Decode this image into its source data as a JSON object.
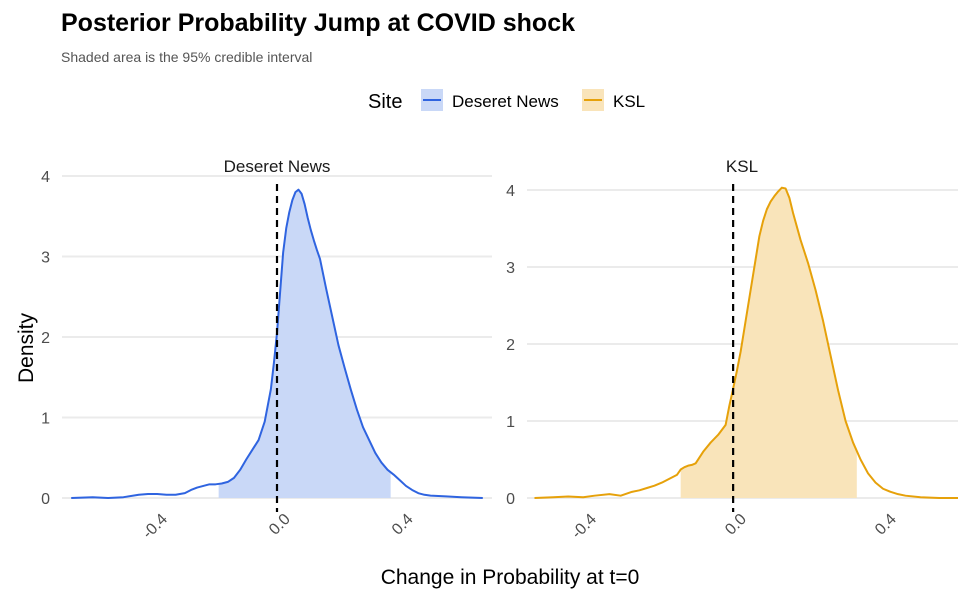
{
  "chart_data": {
    "type": "area",
    "title": "Posterior Probability Jump at COVID shock",
    "subtitle": "Shaded area is the 95% credible interval",
    "xlabel": "Change in Probability at t=0",
    "ylabel": "Density",
    "legend": {
      "title": "Site",
      "placement": "top",
      "entries": [
        {
          "label": "Deseret News",
          "color": "#2f64e0",
          "fill": "#c9d8f7"
        },
        {
          "label": "KSL",
          "color": "#e6a10a",
          "fill": "#f9e4ba"
        }
      ]
    },
    "reference_line": {
      "x": 0,
      "style": "dashed",
      "color": "#000000"
    },
    "grid": "horizontal",
    "panels": [
      {
        "strip": "Deseret News",
        "color": "#2f64e0",
        "fill": "#c9d8f7",
        "xlim": [
          -0.7,
          0.7
        ],
        "ylim": [
          0,
          4.0
        ],
        "x_ticks": [
          -0.4,
          0.0,
          0.4
        ],
        "x_tick_labels": [
          "-0.4",
          "0.0",
          "0.4"
        ],
        "y_ticks": [
          0,
          1,
          2,
          3,
          4
        ],
        "y_tick_labels": [
          "0",
          "1",
          "2",
          "3",
          "4"
        ],
        "ci": [
          -0.19,
          0.37
        ],
        "density": {
          "x": [
            -0.67,
            -0.6,
            -0.55,
            -0.5,
            -0.45,
            -0.42,
            -0.39,
            -0.36,
            -0.33,
            -0.3,
            -0.28,
            -0.26,
            -0.24,
            -0.22,
            -0.2,
            -0.18,
            -0.16,
            -0.14,
            -0.12,
            -0.1,
            -0.08,
            -0.06,
            -0.04,
            -0.02,
            -0.01,
            0.0,
            0.01,
            0.02,
            0.03,
            0.04,
            0.05,
            0.06,
            0.07,
            0.08,
            0.09,
            0.1,
            0.11,
            0.12,
            0.13,
            0.14,
            0.16,
            0.18,
            0.2,
            0.22,
            0.24,
            0.26,
            0.28,
            0.3,
            0.32,
            0.34,
            0.36,
            0.38,
            0.4,
            0.42,
            0.44,
            0.46,
            0.48,
            0.5,
            0.55,
            0.6,
            0.67
          ],
          "y": [
            0.0,
            0.01,
            0.0,
            0.01,
            0.04,
            0.05,
            0.05,
            0.04,
            0.04,
            0.06,
            0.1,
            0.13,
            0.15,
            0.17,
            0.17,
            0.18,
            0.2,
            0.25,
            0.35,
            0.48,
            0.6,
            0.72,
            0.95,
            1.35,
            1.68,
            2.05,
            2.55,
            3.05,
            3.35,
            3.55,
            3.7,
            3.8,
            3.83,
            3.78,
            3.65,
            3.48,
            3.33,
            3.2,
            3.08,
            2.97,
            2.6,
            2.25,
            1.9,
            1.62,
            1.35,
            1.1,
            0.88,
            0.72,
            0.56,
            0.44,
            0.35,
            0.29,
            0.22,
            0.15,
            0.1,
            0.06,
            0.04,
            0.03,
            0.02,
            0.01,
            0.0
          ]
        }
      },
      {
        "strip": "KSL",
        "color": "#e6a10a",
        "fill": "#f9e4ba",
        "xlim": [
          -0.55,
          0.6
        ],
        "ylim": [
          0,
          4.0
        ],
        "x_ticks": [
          -0.4,
          0.0,
          0.4
        ],
        "x_tick_labels": [
          "-0.4",
          "0.0",
          "0.4"
        ],
        "y_ticks": [
          0,
          1,
          2,
          3,
          4
        ],
        "y_tick_labels": [
          "0",
          "1",
          "2",
          "3",
          "4"
        ],
        "ci": [
          -0.14,
          0.33
        ],
        "density": {
          "x": [
            -0.53,
            -0.48,
            -0.44,
            -0.4,
            -0.37,
            -0.33,
            -0.3,
            -0.27,
            -0.25,
            -0.23,
            -0.21,
            -0.19,
            -0.17,
            -0.15,
            -0.14,
            -0.13,
            -0.12,
            -0.11,
            -0.1,
            -0.08,
            -0.06,
            -0.04,
            -0.02,
            -0.01,
            0.0,
            0.01,
            0.02,
            0.03,
            0.04,
            0.05,
            0.06,
            0.07,
            0.08,
            0.09,
            0.1,
            0.11,
            0.12,
            0.13,
            0.14,
            0.15,
            0.16,
            0.18,
            0.2,
            0.22,
            0.24,
            0.26,
            0.28,
            0.3,
            0.32,
            0.34,
            0.36,
            0.38,
            0.4,
            0.42,
            0.44,
            0.46,
            0.5,
            0.55,
            0.6
          ],
          "y": [
            0.0,
            0.01,
            0.02,
            0.01,
            0.03,
            0.05,
            0.03,
            0.08,
            0.1,
            0.13,
            0.16,
            0.2,
            0.25,
            0.3,
            0.37,
            0.4,
            0.42,
            0.43,
            0.45,
            0.6,
            0.72,
            0.82,
            0.95,
            1.2,
            1.42,
            1.65,
            1.9,
            2.2,
            2.5,
            2.8,
            3.1,
            3.4,
            3.6,
            3.75,
            3.85,
            3.92,
            3.98,
            4.03,
            4.02,
            3.9,
            3.7,
            3.35,
            3.05,
            2.7,
            2.3,
            1.85,
            1.4,
            1.0,
            0.72,
            0.5,
            0.32,
            0.2,
            0.12,
            0.08,
            0.05,
            0.03,
            0.01,
            0.0,
            0.0
          ]
        }
      }
    ]
  }
}
